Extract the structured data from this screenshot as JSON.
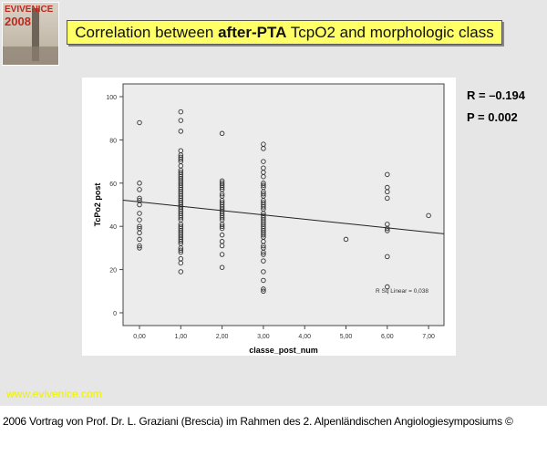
{
  "logo": {
    "line1": "EVIVENICE",
    "line2": "2008"
  },
  "title": {
    "prefix": "Correlation between ",
    "bold": "after-PTA",
    "suffix": " TcpO2 and morphologic class"
  },
  "stats": {
    "r": "R = –0.194",
    "p": "P = 0.002"
  },
  "website": "www.evivenice.com",
  "footer": "2006 Vortrag von Prof. Dr. L. Graziani (Brescia) im Rahmen des 2. Alpenländischen Angiologiesymposiums ©",
  "chart_data": {
    "type": "scatter",
    "xlabel": "classe_post_num",
    "ylabel": "TcPo2 post",
    "xlim": [
      -0.4,
      7.4
    ],
    "ylim": [
      -5,
      105
    ],
    "xticks": [
      "0,00",
      "1,00",
      "2,00",
      "3,00",
      "4,00",
      "5,00",
      "6,00",
      "7,00"
    ],
    "yticks": [
      "0",
      "20",
      "40",
      "60",
      "80",
      "100"
    ],
    "grid": false,
    "annotation": "R Sq Linear = 0,038",
    "fit": {
      "intercept": 51.3,
      "slope": -2.0
    },
    "colors": {
      "plot_bg": "#ececec",
      "marker": "#333333"
    },
    "points": [
      [
        0,
        [
          88,
          60,
          57,
          53,
          52,
          50,
          46,
          43,
          40,
          39,
          37,
          34,
          31,
          30
        ]
      ],
      [
        1,
        [
          93,
          89,
          84,
          75,
          73,
          72,
          71,
          70,
          68,
          66,
          65,
          64,
          63,
          62,
          61,
          60,
          59,
          58,
          57,
          56,
          55,
          54,
          53,
          52,
          51,
          50,
          49,
          48,
          47,
          46,
          45,
          44,
          43,
          41,
          40,
          39,
          38,
          37,
          36,
          35,
          34,
          33,
          32,
          30,
          29,
          28,
          25,
          23,
          19
        ]
      ],
      [
        2,
        [
          83,
          61,
          60,
          59,
          58,
          57,
          55,
          54,
          52,
          51,
          50,
          49,
          48,
          47,
          46,
          45,
          44,
          43,
          41,
          40,
          39,
          36,
          33,
          31,
          27,
          21
        ]
      ],
      [
        3,
        [
          78,
          76,
          70,
          67,
          65,
          63,
          60,
          59,
          58,
          56,
          55,
          54,
          52,
          51,
          50,
          49,
          48,
          46,
          45,
          44,
          43,
          42,
          41,
          40,
          39,
          38,
          37,
          36,
          35,
          33,
          31,
          30,
          28,
          27,
          24,
          19,
          15,
          11,
          10
        ]
      ],
      [
        5,
        [
          34
        ]
      ],
      [
        6,
        [
          64,
          58,
          56,
          53,
          41,
          39,
          38,
          26,
          12
        ]
      ],
      [
        7,
        [
          45
        ]
      ]
    ]
  }
}
